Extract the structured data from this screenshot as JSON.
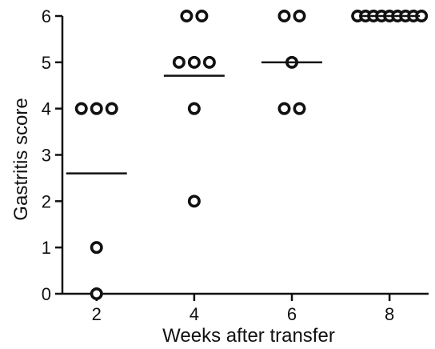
{
  "chart_data": {
    "type": "scatter",
    "title": "",
    "xlabel": "Weeks after transfer",
    "ylabel": "Gastritis score",
    "x_ticks": [
      "2",
      "4",
      "6",
      "8"
    ],
    "y_ticks": [
      "0",
      "1",
      "2",
      "3",
      "4",
      "5",
      "6"
    ],
    "xlim": [
      1.3,
      8.8
    ],
    "ylim": [
      0,
      6
    ],
    "grid": false,
    "legend": "none",
    "marker": "open-circle",
    "groups": [
      {
        "x": 2,
        "values": [
          4,
          4,
          4,
          1,
          0
        ],
        "mean": 2.6
      },
      {
        "x": 4,
        "values": [
          6,
          6,
          5,
          5,
          5,
          4,
          2
        ],
        "mean": 4.71
      },
      {
        "x": 6,
        "values": [
          6,
          6,
          5,
          4,
          4
        ],
        "mean": 5.0
      },
      {
        "x": 8,
        "values": [
          6,
          6,
          6,
          6,
          6,
          6,
          6,
          6,
          6
        ],
        "mean": 6.0
      }
    ],
    "colors": {
      "marker": "#111111",
      "axis": "#111111"
    }
  }
}
